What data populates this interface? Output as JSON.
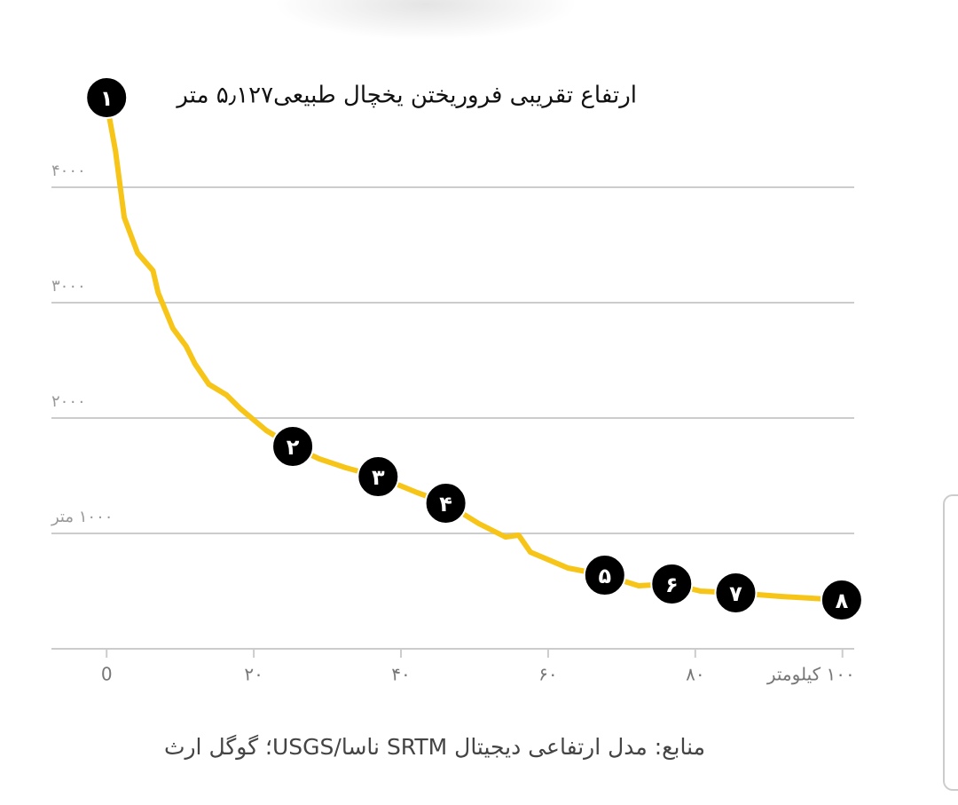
{
  "chart_data": {
    "type": "line",
    "annotation": "ارتفاع تقریبی فروریختن یخچال طبیعی۵٫۱۲۷ متر",
    "source": "منابع: مدل ارتفاعی دیجیتال SRTM ناسا/USGS؛ گوگل ارث",
    "x": [
      0.2,
      1.2,
      2.4,
      4.2,
      6.3,
      7.0,
      9.0,
      10.8,
      12.0,
      13.9,
      16.3,
      18.1,
      21.7,
      25.3,
      28.9,
      32.5,
      36.9,
      42.2,
      46.1,
      50.6,
      54.2,
      56.0,
      57.6,
      62.7,
      67.7,
      72.3,
      76.8,
      80.7,
      85.5,
      91.6,
      99.9
    ],
    "series": [
      {
        "color": "#f6c518",
        "values": [
          4662,
          4315,
          3738,
          3431,
          3277,
          3085,
          2777,
          2623,
          2469,
          2292,
          2200,
          2085,
          1892,
          1754,
          1646,
          1569,
          1492,
          1354,
          1262,
          1085,
          969,
          985,
          838,
          700,
          638,
          546,
          562,
          500,
          485,
          454,
          423
        ]
      }
    ],
    "markers": [
      {
        "label": "۱",
        "x": 0,
        "y": 4777
      },
      {
        "label": "۲",
        "x": 25.3,
        "y": 1754
      },
      {
        "label": "۳",
        "x": 36.9,
        "y": 1492
      },
      {
        "label": "۴",
        "x": 46.1,
        "y": 1262
      },
      {
        "label": "۵",
        "x": 67.7,
        "y": 638
      },
      {
        "label": "۶",
        "x": 76.8,
        "y": 562
      },
      {
        "label": "۷",
        "x": 85.5,
        "y": 485
      },
      {
        "label": "۸",
        "x": 99.9,
        "y": 423
      }
    ],
    "xlim": [
      -7.5,
      101.6
    ],
    "ylim": [
      0,
      5000
    ],
    "xticks": [
      0,
      {
        "value": 20,
        "label": "۲۰"
      },
      {
        "value": 40,
        "label": "۴۰"
      },
      {
        "value": 60,
        "label": "۶۰"
      },
      {
        "value": 80,
        "label": "۸۰"
      },
      {
        "value": 100,
        "label": "۱۰۰ کیلومتر"
      }
    ],
    "yticks": [
      {
        "value": 1000,
        "label": "۱۰۰۰ متر"
      },
      {
        "value": 2000,
        "label": "۲۰۰۰"
      },
      {
        "value": 3000,
        "label": "۳۰۰۰"
      },
      {
        "value": 4000,
        "label": "۴۰۰۰"
      }
    ],
    "grid": true
  }
}
